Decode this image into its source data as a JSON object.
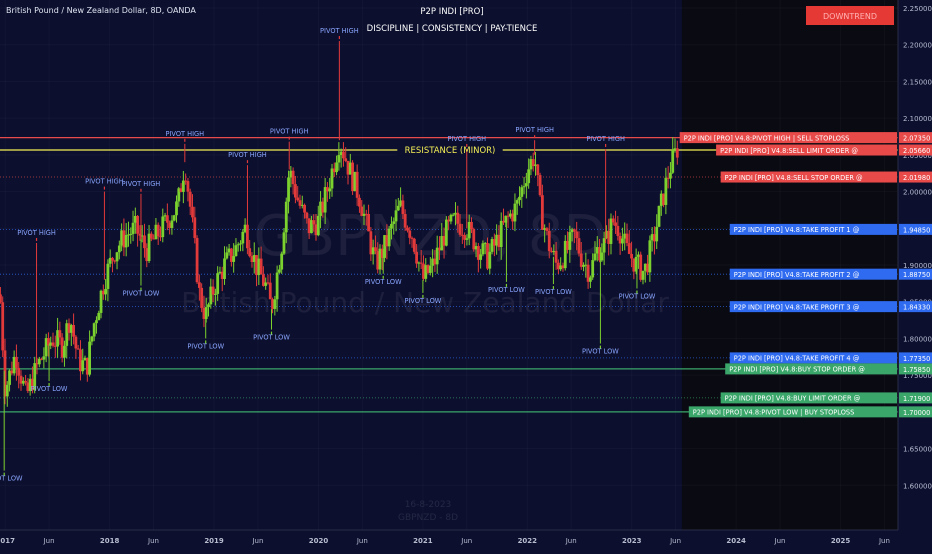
{
  "symbol_title": "British Pound / New Zealand Dollar, 8D, OANDA",
  "indicator": {
    "name": "P2P INDI [PRO]",
    "tagline": "DISCIPLINE  |  CONSISTENCY  |  PAY-TIENCE",
    "status_badge": "DOWNTREND"
  },
  "watermark": {
    "ticker": "GBPNZD, 8D",
    "name": "British Pound / New Zealand Dollar",
    "footer1": "16-8-2023",
    "footer2": "GBPNZD - 8D"
  },
  "colors": {
    "bg": "#0c0f2e",
    "bg_future": "#0a0a12",
    "up": "#7bd12e",
    "down": "#e23a3a",
    "resistance": "#f5f056",
    "red_level": "#e84a4a",
    "blue_level": "#2f6bf0",
    "green_level": "#3aa66a",
    "label_text": "#8aa6ff",
    "badge": "#e53935"
  },
  "chart_data": {
    "type": "candlestick",
    "y_axis": {
      "min": 1.55,
      "max": 2.25,
      "ticks": [
        "2.25000",
        "2.20000",
        "2.15000",
        "2.10000",
        "2.05000",
        "2.00000",
        "1.95000",
        "1.90000",
        "1.85000",
        "1.80000",
        "1.75000",
        "1.70000",
        "1.65000",
        "1.60000"
      ]
    },
    "x_axis": {
      "start": 2016.95,
      "end": 2025.55,
      "ticks": [
        {
          "label": "2017",
          "t": 2017.0,
          "bold": true
        },
        {
          "label": "Jun",
          "t": 2017.42
        },
        {
          "label": "2018",
          "t": 2018.0,
          "bold": true
        },
        {
          "label": "Jun",
          "t": 2018.42
        },
        {
          "label": "2019",
          "t": 2019.0,
          "bold": true
        },
        {
          "label": "Jun",
          "t": 2019.42
        },
        {
          "label": "2020",
          "t": 2020.0,
          "bold": true
        },
        {
          "label": "Jun",
          "t": 2020.42
        },
        {
          "label": "2021",
          "t": 2021.0,
          "bold": true
        },
        {
          "label": "Jun",
          "t": 2021.42
        },
        {
          "label": "2022",
          "t": 2022.0,
          "bold": true
        },
        {
          "label": "Jun",
          "t": 2022.42
        },
        {
          "label": "2023",
          "t": 2023.0,
          "bold": true
        },
        {
          "label": "Jun",
          "t": 2023.42
        },
        {
          "label": "2024",
          "t": 2024.0,
          "bold": true
        },
        {
          "label": "Jun",
          "t": 2024.42
        },
        {
          "label": "2025",
          "t": 2025.0,
          "bold": true
        },
        {
          "label": "Jun",
          "t": 2025.42
        }
      ]
    },
    "future_start": 2023.48,
    "price_path": [
      [
        2016.95,
        1.86
      ],
      [
        2017.0,
        1.73
      ],
      [
        2017.1,
        1.78
      ],
      [
        2017.2,
        1.72
      ],
      [
        2017.3,
        1.76
      ],
      [
        2017.45,
        1.8
      ],
      [
        2017.55,
        1.79
      ],
      [
        2017.62,
        1.83
      ],
      [
        2017.7,
        1.77
      ],
      [
        2017.78,
        1.76
      ],
      [
        2017.85,
        1.82
      ],
      [
        2017.95,
        1.88
      ],
      [
        2018.05,
        1.92
      ],
      [
        2018.15,
        1.94
      ],
      [
        2018.25,
        1.95
      ],
      [
        2018.35,
        1.92
      ],
      [
        2018.45,
        1.94
      ],
      [
        2018.55,
        1.96
      ],
      [
        2018.65,
        1.98
      ],
      [
        2018.72,
        2.04
      ],
      [
        2018.78,
        1.97
      ],
      [
        2018.86,
        1.86
      ],
      [
        2018.92,
        1.83
      ],
      [
        2019.0,
        1.87
      ],
      [
        2019.1,
        1.9
      ],
      [
        2019.2,
        1.92
      ],
      [
        2019.3,
        1.95
      ],
      [
        2019.4,
        1.9
      ],
      [
        2019.5,
        1.87
      ],
      [
        2019.55,
        1.84
      ],
      [
        2019.65,
        1.93
      ],
      [
        2019.72,
        2.03
      ],
      [
        2019.8,
        1.99
      ],
      [
        2019.9,
        1.95
      ],
      [
        2020.0,
        1.96
      ],
      [
        2020.08,
        2.0
      ],
      [
        2020.15,
        2.04
      ],
      [
        2020.2,
        2.07
      ],
      [
        2020.25,
        2.05
      ],
      [
        2020.32,
        2.02
      ],
      [
        2020.4,
        1.99
      ],
      [
        2020.48,
        1.94
      ],
      [
        2020.55,
        1.9
      ],
      [
        2020.65,
        1.93
      ],
      [
        2020.78,
        1.98
      ],
      [
        2020.9,
        1.94
      ],
      [
        2021.0,
        1.88
      ],
      [
        2021.1,
        1.9
      ],
      [
        2021.2,
        1.94
      ],
      [
        2021.3,
        1.96
      ],
      [
        2021.42,
        1.95
      ],
      [
        2021.55,
        1.92
      ],
      [
        2021.62,
        1.91
      ],
      [
        2021.7,
        1.93
      ],
      [
        2021.8,
        1.96
      ],
      [
        2021.9,
        1.98
      ],
      [
        2022.0,
        2.03
      ],
      [
        2022.07,
        2.05
      ],
      [
        2022.12,
        1.98
      ],
      [
        2022.2,
        1.93
      ],
      [
        2022.28,
        1.9
      ],
      [
        2022.38,
        1.92
      ],
      [
        2022.45,
        1.94
      ],
      [
        2022.52,
        1.91
      ],
      [
        2022.6,
        1.89
      ],
      [
        2022.67,
        1.92
      ],
      [
        2022.75,
        1.93
      ],
      [
        2022.82,
        1.96
      ],
      [
        2022.88,
        1.95
      ],
      [
        2022.95,
        1.92
      ],
      [
        2023.05,
        1.9
      ],
      [
        2023.12,
        1.89
      ],
      [
        2023.2,
        1.93
      ],
      [
        2023.28,
        1.98
      ],
      [
        2023.36,
        2.03
      ],
      [
        2023.44,
        2.06
      ]
    ],
    "price_levels": [
      {
        "label": "P2P INDI [PRO] V4.8:PIVOT HIGH | SELL STOPLOSS",
        "price": 2.0735,
        "price_label": "2.07350",
        "style": "red",
        "line": "solid"
      },
      {
        "label": "P2P INDI [PRO] V4.8:SELL LIMIT ORDER @",
        "price": 2.0566,
        "price_label": "2.05660",
        "style": "red",
        "line": "solid_yellow"
      },
      {
        "label": "P2P INDI [PRO] V4.8:SELL STOP ORDER @",
        "price": 2.0198,
        "price_label": "2.01980",
        "style": "red",
        "line": "dotted"
      },
      {
        "label": "P2P INDI [PRO] V4.8:TAKE PROFIT 1 @",
        "price": 1.9485,
        "price_label": "1.94850",
        "style": "blue",
        "line": "dotted"
      },
      {
        "label": "P2P INDI [PRO] V4.8:TAKE PROFIT 2 @",
        "price": 1.8875,
        "price_label": "1.88750",
        "style": "blue",
        "line": "dotted"
      },
      {
        "label": "P2P INDI [PRO] V4.8:TAKE PROFIT 3 @",
        "price": 1.8433,
        "price_label": "1.84330",
        "style": "blue",
        "line": "dotted"
      },
      {
        "label": "P2P INDI [PRO] V4.8:TAKE PROFIT 4 @",
        "price": 1.7735,
        "price_label": "1.77350",
        "style": "blue",
        "line": "dotted"
      },
      {
        "label": "P2P INDI [PRO] V4.8:BUY STOP ORDER @",
        "price": 1.7585,
        "price_label": "1.75850",
        "style": "green",
        "line": "solid"
      },
      {
        "label": "P2P INDI [PRO] V4.8:BUY LIMIT ORDER @",
        "price": 1.719,
        "price_label": "1.71900",
        "style": "green",
        "line": "dotted"
      },
      {
        "label": "P2P INDI [PRO] V4.8:PIVOT LOW | BUY STOPLOSS",
        "price": 1.7,
        "price_label": "1.70000",
        "style": "green",
        "line": "solid"
      }
    ],
    "resistance": {
      "label": "RESISTANCE (MINOR)",
      "price": 2.0566
    },
    "pivots": [
      {
        "label": "PIVOT HIGH",
        "t": 2017.3,
        "price": 1.93,
        "type": "high"
      },
      {
        "label": "PIVOT HIGH",
        "t": 2017.95,
        "price": 2.0,
        "type": "high"
      },
      {
        "label": "PIVOT HIGH",
        "t": 2018.3,
        "price": 1.997,
        "type": "high"
      },
      {
        "label": "PIVOT HIGH",
        "t": 2018.72,
        "price": 2.065,
        "type": "high"
      },
      {
        "label": "PIVOT HIGH",
        "t": 2019.32,
        "price": 2.036,
        "type": "high"
      },
      {
        "label": "PIVOT HIGH",
        "t": 2019.72,
        "price": 2.068,
        "type": "high"
      },
      {
        "label": "PIVOT HIGH",
        "t": 2020.2,
        "price": 2.205,
        "type": "high"
      },
      {
        "label": "PIVOT HIGH",
        "t": 2021.42,
        "price": 2.058,
        "type": "high"
      },
      {
        "label": "PIVOT HIGH",
        "t": 2022.07,
        "price": 2.07,
        "type": "high"
      },
      {
        "label": "PIVOT HIGH",
        "t": 2022.75,
        "price": 2.058,
        "type": "high"
      },
      {
        "label": "PIVOT LOW",
        "t": 2016.99,
        "price": 1.62,
        "type": "low"
      },
      {
        "label": "PIVOT LOW",
        "t": 2017.42,
        "price": 1.742,
        "type": "low"
      },
      {
        "label": "PIVOT LOW",
        "t": 2018.3,
        "price": 1.872,
        "type": "low"
      },
      {
        "label": "PIVOT LOW",
        "t": 2018.92,
        "price": 1.8,
        "type": "low"
      },
      {
        "label": "PIVOT LOW",
        "t": 2019.55,
        "price": 1.812,
        "type": "low"
      },
      {
        "label": "PIVOT LOW",
        "t": 2020.62,
        "price": 1.888,
        "type": "low"
      },
      {
        "label": "PIVOT LOW",
        "t": 2021.0,
        "price": 1.862,
        "type": "low"
      },
      {
        "label": "PIVOT LOW",
        "t": 2021.8,
        "price": 1.877,
        "type": "low"
      },
      {
        "label": "PIVOT LOW",
        "t": 2022.25,
        "price": 1.874,
        "type": "low"
      },
      {
        "label": "PIVOT LOW",
        "t": 2022.7,
        "price": 1.793,
        "type": "low"
      },
      {
        "label": "PIVOT LOW",
        "t": 2023.05,
        "price": 1.868,
        "type": "low"
      }
    ]
  }
}
